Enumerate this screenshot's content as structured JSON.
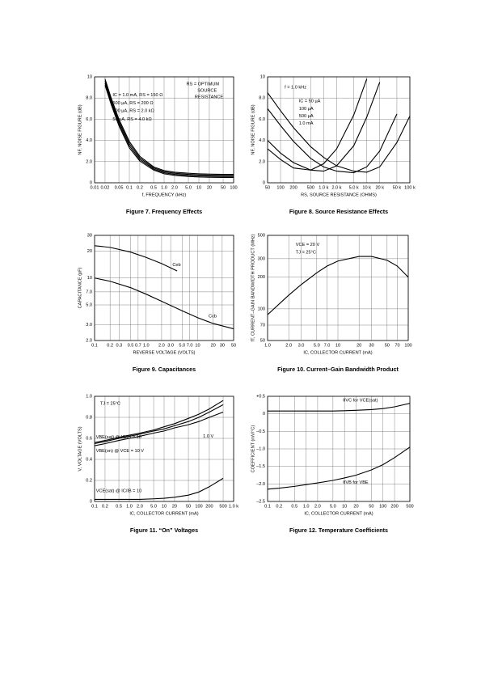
{
  "chart_data": [
    {
      "type": "line",
      "title": "Figure 7. Frequency Effects",
      "xlabel": "f, FREQUENCY (kHz)",
      "ylabel": "NF, NOISE FIGURE (dB)",
      "xlog": true,
      "ylog": false,
      "grid": true,
      "xlim": [
        0.01,
        100
      ],
      "ylim": [
        0,
        10
      ],
      "xticks": [
        0.01,
        0.02,
        0.05,
        0.1,
        0.2,
        0.5,
        {
          "value": 1,
          "label": "1.0"
        },
        {
          "value": 2,
          "label": "2.0"
        },
        {
          "value": 5,
          "label": "5.0"
        },
        10,
        20,
        50,
        100
      ],
      "yticks": [
        0,
        {
          "value": 2,
          "label": "2.0"
        },
        {
          "value": 4,
          "label": "4.0"
        },
        {
          "value": 6,
          "label": "6.0"
        },
        {
          "value": 8,
          "label": "8.0"
        },
        10
      ],
      "annotations": [
        "RS = OPTIMUM",
        "SOURCE",
        "RESISTANCE"
      ],
      "series": [
        {
          "name": "IC = 1.0 mA, RS = 150 Ω",
          "color": "#000000",
          "x": [
            0.02,
            0.03,
            0.05,
            0.1,
            0.2,
            0.5,
            1,
            2,
            5,
            10,
            20,
            50,
            100
          ],
          "values": [
            9.8,
            8.0,
            6.0,
            3.9,
            2.5,
            1.5,
            1.15,
            1.0,
            0.9,
            0.85,
            0.82,
            0.8,
            0.8
          ]
        },
        {
          "name": "500 µA, RS = 200 Ω",
          "color": "#000000",
          "x": [
            0.02,
            0.03,
            0.05,
            0.1,
            0.2,
            0.5,
            1,
            2,
            5,
            10,
            20,
            50,
            100
          ],
          "values": [
            9.6,
            7.8,
            5.8,
            3.7,
            2.35,
            1.4,
            1.05,
            0.9,
            0.8,
            0.75,
            0.72,
            0.7,
            0.7
          ]
        },
        {
          "name": "100 µA, RS = 2.0 kΩ",
          "color": "#000000",
          "x": [
            0.02,
            0.03,
            0.05,
            0.1,
            0.2,
            0.5,
            1,
            2,
            5,
            10,
            20,
            50,
            100
          ],
          "values": [
            9.4,
            7.6,
            5.6,
            3.5,
            2.2,
            1.3,
            0.95,
            0.8,
            0.7,
            0.65,
            0.62,
            0.6,
            0.6
          ]
        },
        {
          "name": "50 µA, RS = 4.0 kΩ",
          "color": "#000000",
          "x": [
            0.02,
            0.03,
            0.05,
            0.1,
            0.2,
            0.5,
            1,
            2,
            5,
            10,
            20,
            50,
            100
          ],
          "values": [
            9.2,
            7.4,
            5.4,
            3.3,
            2.05,
            1.2,
            0.85,
            0.7,
            0.6,
            0.55,
            0.52,
            0.5,
            0.5
          ]
        }
      ]
    },
    {
      "type": "line",
      "title": "Figure 8. Source Resistance Effects",
      "xlabel": "RS, SOURCE RESISTANCE (OHMS)",
      "ylabel": "NF, NOISE FIGURE (dB)",
      "xlog": true,
      "ylog": false,
      "grid": true,
      "xlim": [
        50,
        100000
      ],
      "ylim": [
        0,
        10
      ],
      "xticks": [
        50,
        100,
        200,
        500,
        {
          "value": 1000,
          "label": "1.0 k"
        },
        {
          "value": 2000,
          "label": "2.0 k"
        },
        {
          "value": 5000,
          "label": "5.0 k"
        },
        {
          "value": 10000,
          "label": "10 k"
        },
        {
          "value": 20000,
          "label": "20 k"
        },
        {
          "value": 50000,
          "label": "50 k"
        },
        {
          "value": 100000,
          "label": "100 k"
        }
      ],
      "yticks": [
        0,
        {
          "value": 2,
          "label": "2.0"
        },
        {
          "value": 4,
          "label": "4.0"
        },
        {
          "value": 6,
          "label": "6.0"
        },
        {
          "value": 8,
          "label": "8.0"
        },
        10
      ],
      "annotations": [
        "f = 1.0 kHz"
      ],
      "series": [
        {
          "name": "IC = 50 µA",
          "color": "#000000",
          "x": [
            50,
            100,
            200,
            500,
            1000,
            2000,
            5000,
            10000,
            20000,
            50000,
            100000
          ],
          "values": [
            8.5,
            6.8,
            5.2,
            3.4,
            2.4,
            1.6,
            1.1,
            1.0,
            1.5,
            3.8,
            6.3
          ]
        },
        {
          "name": "100 µA",
          "color": "#000000",
          "x": [
            50,
            100,
            200,
            500,
            1000,
            2000,
            5000,
            10000,
            20000,
            50000
          ],
          "values": [
            7.0,
            5.4,
            3.9,
            2.3,
            1.5,
            1.1,
            0.95,
            1.5,
            3.0,
            6.5
          ]
        },
        {
          "name": "500 µA",
          "color": "#000000",
          "x": [
            50,
            100,
            200,
            500,
            1000,
            2000,
            5000,
            10000,
            20000
          ],
          "values": [
            4.0,
            2.8,
            1.9,
            1.2,
            1.1,
            1.6,
            3.5,
            6.2,
            9.5
          ]
        },
        {
          "name": "1.0 mA",
          "color": "#000000",
          "x": [
            50,
            100,
            200,
            500,
            1000,
            2000,
            5000,
            10000
          ],
          "values": [
            3.2,
            2.2,
            1.4,
            1.2,
            1.8,
            3.2,
            6.4,
            9.8
          ]
        }
      ]
    },
    {
      "type": "line",
      "title": "Figure 9. Capacitances",
      "xlabel": "REVERSE VOLTAGE (VOLTS)",
      "ylabel": "CAPACITANCE (pF)",
      "xlog": true,
      "ylog": true,
      "grid": true,
      "xlim": [
        0.1,
        50
      ],
      "ylim": [
        2,
        30
      ],
      "xticks": [
        0.1,
        0.2,
        0.3,
        0.5,
        0.7,
        {
          "value": 1,
          "label": "1.0"
        },
        {
          "value": 2,
          "label": "2.0"
        },
        {
          "value": 3,
          "label": "3.0"
        },
        {
          "value": 5,
          "label": "5.0"
        },
        {
          "value": 7,
          "label": "7.0"
        },
        10,
        20,
        30,
        50
      ],
      "yticks": [
        {
          "value": 2,
          "label": "2.0"
        },
        {
          "value": 3,
          "label": "3.0"
        },
        {
          "value": 5,
          "label": "5.0"
        },
        {
          "value": 7,
          "label": "7.0"
        },
        10,
        20,
        30
      ],
      "series": [
        {
          "name": "Ceb",
          "color": "#000000",
          "x": [
            0.1,
            0.2,
            0.5,
            1,
            2,
            4
          ],
          "values": [
            23,
            22,
            19.5,
            17,
            14.5,
            12
          ]
        },
        {
          "name": "Ccb",
          "color": "#000000",
          "x": [
            0.1,
            0.2,
            0.5,
            1,
            2,
            5,
            10,
            20,
            50
          ],
          "values": [
            10,
            9.2,
            7.8,
            6.6,
            5.5,
            4.3,
            3.6,
            3.1,
            2.7
          ]
        }
      ]
    },
    {
      "type": "line",
      "title": "Figure 10. Current–Gain Bandwidth Product",
      "xlabel": "IC, COLLECTOR CURRENT (mA)",
      "ylabel": "fT, CURRENT–GAIN BANDWIDTH PRODUCT (MHz)",
      "xlog": true,
      "ylog": true,
      "grid": true,
      "xlim": [
        1,
        100
      ],
      "ylim": [
        50,
        500
      ],
      "xticks": [
        {
          "value": 1,
          "label": "1.0"
        },
        {
          "value": 2,
          "label": "2.0"
        },
        {
          "value": 3,
          "label": "3.0"
        },
        {
          "value": 5,
          "label": "5.0"
        },
        {
          "value": 7,
          "label": "7.0"
        },
        10,
        20,
        30,
        50,
        70,
        100
      ],
      "yticks": [
        50,
        70,
        100,
        200,
        300,
        500
      ],
      "annotations": [
        "VCE = 20 V",
        "TJ = 25°C"
      ],
      "series": [
        {
          "name": "fT",
          "color": "#000000",
          "x": [
            1,
            2,
            3,
            5,
            7,
            10,
            20,
            30,
            50,
            70,
            100
          ],
          "values": [
            88,
            135,
            170,
            220,
            255,
            285,
            315,
            315,
            290,
            255,
            200
          ]
        }
      ]
    },
    {
      "type": "line",
      "title": "Figure 11. “On” Voltages",
      "xlabel": "IC, COLLECTOR CURRENT (mA)",
      "ylabel": "V, VOLTAGE (VOLTS)",
      "xlog": true,
      "ylog": false,
      "grid": true,
      "xlim": [
        0.1,
        1000
      ],
      "ylim": [
        0,
        1
      ],
      "xticks": [
        0.1,
        0.2,
        0.5,
        {
          "value": 1,
          "label": "1.0"
        },
        {
          "value": 2,
          "label": "2.0"
        },
        {
          "value": 5,
          "label": "5.0"
        },
        10,
        20,
        50,
        100,
        200,
        500,
        {
          "value": 1000,
          "label": "1.0 k"
        }
      ],
      "yticks": [
        0,
        0.2,
        0.4,
        0.6,
        0.8,
        {
          "value": 1,
          "label": "1.0"
        }
      ],
      "annotations": [
        "TJ = 25°C"
      ],
      "series": [
        {
          "name": "VBE(sat) @ IC/IB = 10",
          "color": "#000000",
          "x": [
            0.1,
            0.2,
            0.5,
            1,
            2,
            5,
            10,
            20,
            50,
            100,
            200,
            500
          ],
          "values": [
            0.56,
            0.58,
            0.61,
            0.63,
            0.65,
            0.68,
            0.71,
            0.74,
            0.79,
            0.83,
            0.88,
            0.96
          ]
        },
        {
          "name": "1.0 V",
          "color": "#000000",
          "x": [
            0.1,
            0.2,
            0.5,
            1,
            2,
            5,
            10,
            20,
            50,
            100,
            200,
            500
          ],
          "values": [
            0.55,
            0.57,
            0.6,
            0.62,
            0.64,
            0.67,
            0.69,
            0.72,
            0.76,
            0.8,
            0.85,
            0.92
          ]
        },
        {
          "name": "VBE(on) @ VCE = 10 V",
          "color": "#000000",
          "x": [
            0.1,
            0.2,
            0.5,
            1,
            2,
            5,
            10,
            20,
            50,
            100,
            200,
            500
          ],
          "values": [
            0.53,
            0.55,
            0.58,
            0.6,
            0.62,
            0.65,
            0.67,
            0.7,
            0.73,
            0.76,
            0.8,
            0.85
          ]
        },
        {
          "name": "VCE(sat) @ IC/IB = 10",
          "color": "#000000",
          "x": [
            0.1,
            0.2,
            0.5,
            1,
            2,
            5,
            10,
            20,
            50,
            100,
            200,
            500
          ],
          "values": [
            0.02,
            0.02,
            0.02,
            0.02,
            0.02,
            0.025,
            0.03,
            0.04,
            0.06,
            0.09,
            0.14,
            0.22
          ]
        }
      ]
    },
    {
      "type": "line",
      "title": "Figure 12. Temperature Coefficients",
      "xlabel": "IC, COLLECTOR CURRENT (mA)",
      "ylabel": "COEFFICIENT (mV/°C)",
      "xlog": true,
      "ylog": false,
      "grid": true,
      "xlim": [
        0.1,
        500
      ],
      "ylim": [
        -2.5,
        0.5
      ],
      "xticks": [
        0.1,
        0.2,
        0.5,
        {
          "value": 1,
          "label": "1.0"
        },
        {
          "value": 2,
          "label": "2.0"
        },
        {
          "value": 5,
          "label": "5.0"
        },
        10,
        20,
        50,
        100,
        200,
        500
      ],
      "yticks": [
        {
          "value": 0.5,
          "label": "+0.5"
        },
        0,
        {
          "value": -0.5,
          "label": "–0.5"
        },
        {
          "value": -1,
          "label": "–1.0"
        },
        {
          "value": -1.5,
          "label": "–1.5"
        },
        {
          "value": -2,
          "label": "–2.0"
        },
        {
          "value": -2.5,
          "label": "–2.5"
        }
      ],
      "series": [
        {
          "name": "θVC for VCE(sat)",
          "color": "#000000",
          "x": [
            0.1,
            0.2,
            0.5,
            1,
            2,
            5,
            10,
            20,
            50,
            100,
            200,
            500
          ],
          "values": [
            0.08,
            0.08,
            0.08,
            0.08,
            0.08,
            0.08,
            0.09,
            0.1,
            0.12,
            0.15,
            0.2,
            0.3
          ]
        },
        {
          "name": "θVB for VBE",
          "color": "#000000",
          "x": [
            0.1,
            0.2,
            0.5,
            1,
            2,
            5,
            10,
            20,
            50,
            100,
            200,
            500
          ],
          "values": [
            -2.15,
            -2.12,
            -2.07,
            -2.02,
            -1.97,
            -1.9,
            -1.83,
            -1.75,
            -1.6,
            -1.45,
            -1.25,
            -0.95
          ]
        }
      ]
    }
  ]
}
